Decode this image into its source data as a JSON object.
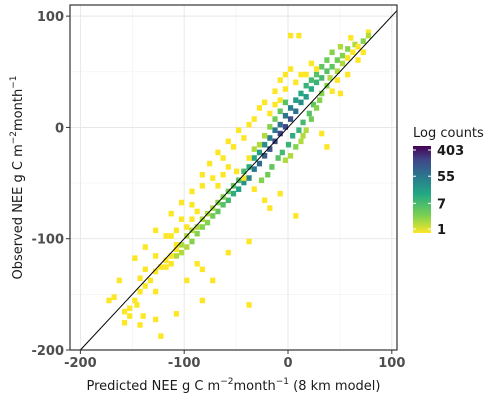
{
  "chart_data": {
    "type": "heatmap",
    "xlabel_parts": [
      "Predicted NEE g C m",
      "−2",
      "month",
      "−1",
      " (8 km model)"
    ],
    "ylabel_parts": [
      "Observed NEE g C m",
      "−2",
      "month",
      "−1"
    ],
    "x_ticks": [
      -200,
      -100,
      0,
      100
    ],
    "x_tick_labels": [
      "-200",
      "-100",
      "0",
      "100"
    ],
    "y_ticks": [
      -200,
      -100,
      0,
      100
    ],
    "y_tick_labels": [
      "-200",
      "-100",
      "0",
      "100"
    ],
    "xlim": [
      -210,
      105
    ],
    "ylim": [
      -200,
      110
    ],
    "grid": true,
    "reference_line": "1:1",
    "bin_width": 5,
    "legend": {
      "title": "Log counts",
      "labels": [
        "403",
        "55",
        "7",
        "1"
      ],
      "values": [
        403,
        55,
        7,
        1
      ],
      "placement": "right"
    },
    "colors": {
      "low": "#fde725",
      "mid1": "#7ad151",
      "mid2": "#22a884",
      "mid3": "#2a788e",
      "mid4": "#414487",
      "high": "#440154"
    },
    "bins": [
      [
        8,
        80,
        1
      ],
      [
        -142,
        -172,
        1
      ],
      [
        0,
        80,
        1
      ],
      [
        75,
        83,
        1
      ],
      [
        75,
        80,
        2
      ],
      [
        70,
        75,
        3
      ],
      [
        62,
        72,
        2
      ],
      [
        58,
        78,
        1
      ],
      [
        55,
        68,
        3
      ],
      [
        50,
        62,
        3
      ],
      [
        48,
        70,
        2
      ],
      [
        45,
        58,
        4
      ],
      [
        40,
        65,
        3
      ],
      [
        40,
        52,
        5
      ],
      [
        35,
        58,
        4
      ],
      [
        35,
        48,
        6
      ],
      [
        30,
        52,
        5
      ],
      [
        30,
        42,
        8
      ],
      [
        25,
        45,
        6
      ],
      [
        25,
        38,
        10
      ],
      [
        20,
        40,
        8
      ],
      [
        20,
        32,
        14
      ],
      [
        15,
        35,
        10
      ],
      [
        15,
        25,
        20
      ],
      [
        10,
        28,
        15
      ],
      [
        10,
        20,
        30
      ],
      [
        5,
        22,
        20
      ],
      [
        5,
        12,
        60
      ],
      [
        0,
        15,
        40
      ],
      [
        0,
        5,
        120
      ],
      [
        -5,
        8,
        50
      ],
      [
        -5,
        -2,
        150
      ],
      [
        -10,
        0,
        60
      ],
      [
        -10,
        -8,
        160
      ],
      [
        -15,
        -5,
        50
      ],
      [
        -15,
        -15,
        140
      ],
      [
        -20,
        -12,
        40
      ],
      [
        -20,
        -22,
        110
      ],
      [
        -25,
        -18,
        30
      ],
      [
        -25,
        -28,
        90
      ],
      [
        -30,
        -25,
        20
      ],
      [
        -30,
        -35,
        70
      ],
      [
        -35,
        -30,
        15
      ],
      [
        -35,
        -40,
        50
      ],
      [
        -40,
        -38,
        12
      ],
      [
        -40,
        -48,
        35
      ],
      [
        -45,
        -42,
        8
      ],
      [
        -45,
        -52,
        25
      ],
      [
        -50,
        -50,
        6
      ],
      [
        -50,
        -58,
        18
      ],
      [
        -55,
        -55,
        5
      ],
      [
        -55,
        -62,
        12
      ],
      [
        -60,
        -60,
        4
      ],
      [
        -60,
        -68,
        8
      ],
      [
        -65,
        -65,
        3
      ],
      [
        -65,
        -72,
        6
      ],
      [
        -70,
        -70,
        3
      ],
      [
        -70,
        -78,
        5
      ],
      [
        -75,
        -75,
        2
      ],
      [
        -75,
        -82,
        4
      ],
      [
        -80,
        -80,
        2
      ],
      [
        -80,
        -88,
        3
      ],
      [
        -85,
        -85,
        2
      ],
      [
        -85,
        -92,
        3
      ],
      [
        -90,
        -92,
        2
      ],
      [
        -90,
        -98,
        3
      ],
      [
        -95,
        -95,
        2
      ],
      [
        -95,
        -105,
        3
      ],
      [
        -100,
        -100,
        2
      ],
      [
        -100,
        -110,
        2
      ],
      [
        -105,
        -108,
        2
      ],
      [
        -105,
        -115,
        2
      ],
      [
        -110,
        -112,
        1
      ],
      [
        -110,
        -118,
        2
      ],
      [
        -115,
        -118,
        1
      ],
      [
        -115,
        -125,
        1
      ],
      [
        -120,
        -122,
        1
      ],
      [
        -120,
        -128,
        1
      ],
      [
        -125,
        -128,
        1
      ],
      [
        -130,
        -132,
        1
      ],
      [
        -135,
        -140,
        1
      ],
      [
        -140,
        -145,
        1
      ],
      [
        -145,
        -150,
        1
      ],
      [
        -150,
        -158,
        1
      ],
      [
        -155,
        -165,
        1
      ],
      [
        30,
        28,
        3
      ],
      [
        22,
        18,
        5
      ],
      [
        18,
        10,
        6
      ],
      [
        12,
        2,
        8
      ],
      [
        8,
        -5,
        10
      ],
      [
        2,
        -10,
        12
      ],
      [
        -2,
        -18,
        10
      ],
      [
        -8,
        -25,
        8
      ],
      [
        -12,
        -30,
        6
      ],
      [
        -18,
        -38,
        5
      ],
      [
        -22,
        -45,
        4
      ],
      [
        -28,
        -50,
        3
      ],
      [
        -5,
        20,
        6
      ],
      [
        -10,
        12,
        5
      ],
      [
        -15,
        5,
        4
      ],
      [
        -20,
        -2,
        3
      ],
      [
        -25,
        -10,
        2
      ],
      [
        -30,
        -18,
        2
      ],
      [
        -35,
        -22,
        2
      ],
      [
        -40,
        -30,
        1
      ],
      [
        5,
        -20,
        3
      ],
      [
        10,
        -15,
        2
      ],
      [
        12,
        -10,
        2
      ],
      [
        15,
        -5,
        2
      ],
      [
        0,
        -28,
        2
      ],
      [
        -5,
        -32,
        2
      ],
      [
        20,
        5,
        4
      ],
      [
        25,
        15,
        3
      ],
      [
        28,
        22,
        3
      ],
      [
        35,
        35,
        3
      ],
      [
        38,
        42,
        2
      ],
      [
        45,
        48,
        2
      ],
      [
        50,
        55,
        2
      ],
      [
        55,
        60,
        1
      ],
      [
        60,
        65,
        1
      ],
      [
        65,
        70,
        1
      ],
      [
        20,
        55,
        1
      ],
      [
        25,
        50,
        1
      ],
      [
        15,
        45,
        1
      ],
      [
        5,
        38,
        1
      ],
      [
        -5,
        32,
        1
      ],
      [
        -10,
        22,
        1
      ],
      [
        -15,
        18,
        1
      ],
      [
        -20,
        10,
        1
      ],
      [
        -35,
        5,
        1
      ],
      [
        -45,
        -12,
        1
      ],
      [
        -55,
        -20,
        1
      ],
      [
        -65,
        -30,
        1
      ],
      [
        -75,
        -48,
        1
      ],
      [
        -85,
        -55,
        1
      ],
      [
        -95,
        -72,
        1
      ],
      [
        -105,
        -85,
        1
      ],
      [
        -110,
        -95,
        1
      ],
      [
        -120,
        -100,
        1
      ],
      [
        -90,
        -125,
        1
      ],
      [
        -85,
        -130,
        1
      ],
      [
        -75,
        -140,
        1
      ],
      [
        -100,
        -140,
        1
      ],
      [
        -40,
        -105,
        1
      ],
      [
        -60,
        -115,
        1
      ],
      [
        -130,
        -150,
        1
      ],
      [
        -148,
        -162,
        1
      ],
      [
        -155,
        -172,
        1
      ],
      [
        -160,
        -168,
        1
      ],
      [
        -125,
        -190,
        1
      ],
      [
        -85,
        -158,
        1
      ],
      [
        -40,
        -162,
        1
      ],
      [
        5,
        -82,
        1
      ],
      [
        -10,
        -62,
        1
      ],
      [
        -20,
        -75,
        1
      ],
      [
        35,
        -20,
        1
      ],
      [
        30,
        -8,
        1
      ],
      [
        -25,
        -68,
        1
      ],
      [
        -35,
        -58,
        1
      ],
      [
        -45,
        -48,
        1
      ],
      [
        -52,
        -42,
        1
      ],
      [
        -60,
        -38,
        1
      ],
      [
        -65,
        -45,
        1
      ],
      [
        -70,
        -55,
        1
      ],
      [
        -90,
        -78,
        1
      ],
      [
        -95,
        -85,
        1
      ],
      [
        -100,
        -92,
        1
      ],
      [
        -110,
        -108,
        1
      ],
      [
        -115,
        -100,
        1
      ],
      [
        -130,
        -118,
        1
      ],
      [
        -140,
        -130,
        1
      ],
      [
        -145,
        -138,
        1
      ],
      [
        40,
        30,
        1
      ],
      [
        45,
        40,
        1
      ],
      [
        48,
        28,
        1
      ],
      [
        55,
        45,
        1
      ],
      [
        70,
        65,
        1
      ],
      [
        65,
        58,
        1
      ],
      [
        10,
        45,
        1
      ],
      [
        0,
        50,
        1
      ],
      [
        -5,
        45,
        1
      ],
      [
        -10,
        40,
        1
      ],
      [
        -15,
        30,
        1
      ],
      [
        -25,
        20,
        1
      ],
      [
        -30,
        15,
        1
      ],
      [
        -40,
        0,
        1
      ],
      [
        -50,
        -5,
        1
      ],
      [
        -60,
        -15,
        1
      ],
      [
        -70,
        -25,
        1
      ],
      [
        -78,
        -35,
        1
      ],
      [
        -85,
        -45,
        1
      ],
      [
        -95,
        -60,
        1
      ],
      [
        -105,
        -70,
        1
      ],
      [
        -115,
        -80,
        1
      ],
      [
        -130,
        -95,
        1
      ],
      [
        -140,
        -110,
        1
      ],
      [
        -150,
        -120,
        1
      ],
      [
        -165,
        -140,
        1
      ],
      [
        -170,
        -155,
        1
      ],
      [
        -175,
        -158,
        1
      ],
      [
        -160,
        -178,
        1
      ],
      [
        -145,
        -180,
        1
      ],
      [
        -130,
        -175,
        1
      ],
      [
        -110,
        -170,
        1
      ]
    ]
  }
}
